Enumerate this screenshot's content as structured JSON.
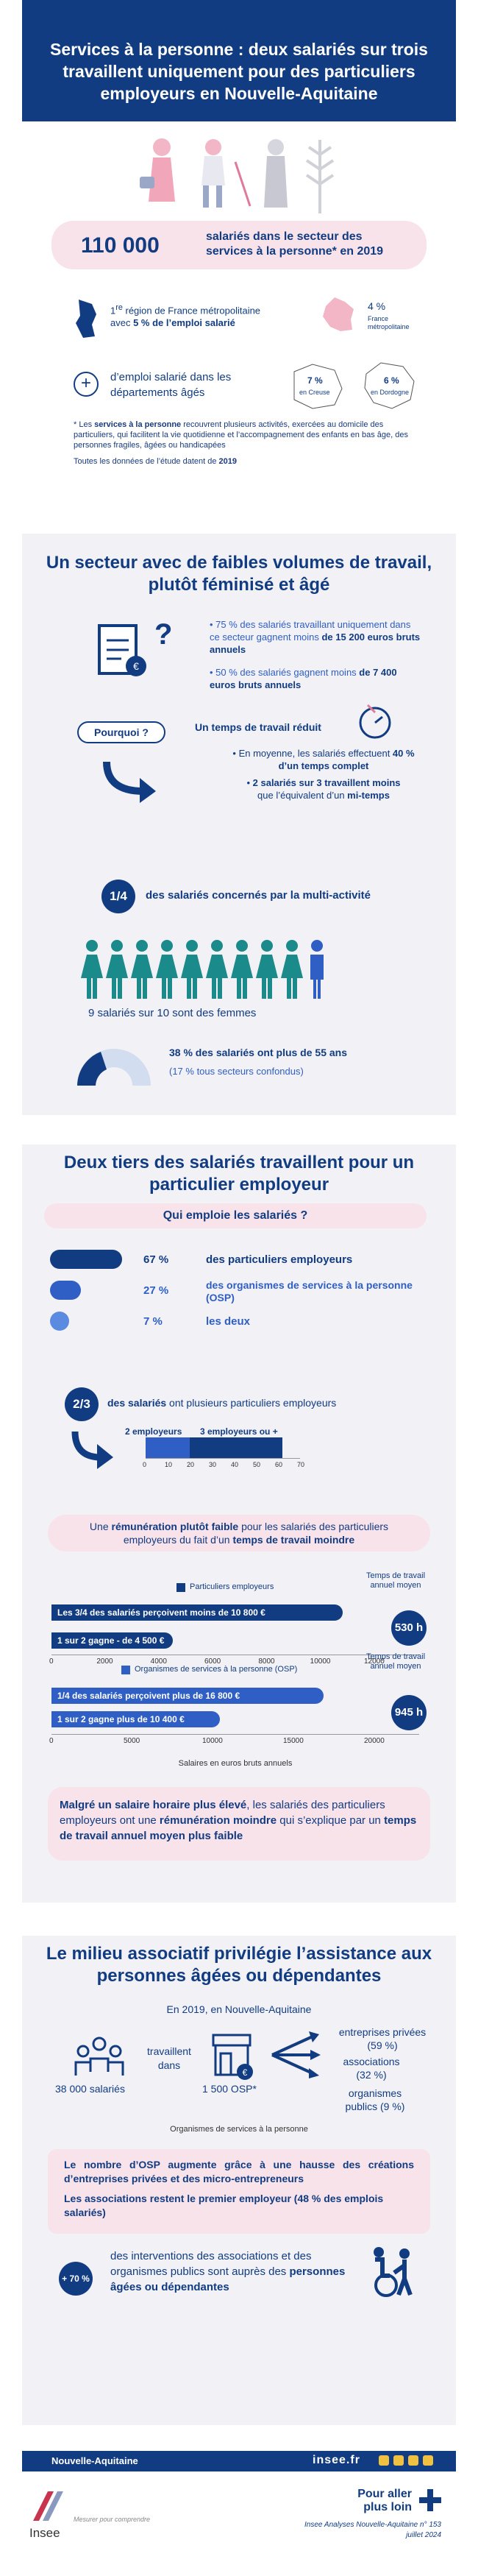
{
  "header": {
    "title": "Services à la personne : deux salariés sur trois travaillent uniquement pour des particuliers employeurs en Nouvelle-Aquitaine"
  },
  "intro": {
    "big_number": "110 000",
    "big_text": "salariés dans le secteur des services à la personne* en 2019",
    "region_rank_sup": "re",
    "region_rank": "1",
    "region_text_1": " région de France métropolitaine",
    "region_text_2a": "avec ",
    "region_text_2b": "5 % de l’emploi salarié",
    "france_pct": "4 %",
    "france_label": "France métropolitaine",
    "aged_text": "d’emploi salarié dans les départements âgés",
    "creuse_pct": "7 %",
    "creuse_label": "en Creuse",
    "dordogne_pct": "6 %",
    "dordogne_label": "en Dordogne",
    "note_star": "* Les ",
    "note_bold": "services à la personne",
    "note_rest": " recouvrent plusieurs activités, exercées au domicile des particuliers, qui facilitent la vie quotidienne et l’accompagnement des enfants en bas âge, des personnes fragiles, âgées ou handicapées",
    "note_data": "Toutes les données de l’étude datent de ",
    "note_year": "2019"
  },
  "sec1": {
    "title": "Un secteur avec de faibles volumes de travail, plutôt féminisé et âgé",
    "stat1a": "75 % des salariés travaillant uniquement dans ce secteur gagnent moins ",
    "stat1b": "de 15 200 euros bruts annuels",
    "stat2a": "50 % des salariés gagnent moins ",
    "stat2b": "de 7 400 euros bruts annuels",
    "pourquoi": "Pourquoi ?",
    "reduced": "Un temps de travail réduit",
    "avg_a": "En moyenne,  les salariés effectuent ",
    "avg_b": "40 % d’un temps complet",
    "two_a": "2 salariés sur 3 travaillent moins",
    "two_b": "que l’équivalent d’un ",
    "two_c": "mi-temps",
    "quarter": "1/4",
    "multi": "des salariés concernés par la multi-activité",
    "women": "9 salariés sur 10 sont des femmes",
    "age_a": "38 % des salariés ont plus de 55 ans",
    "age_b": "(17 % tous secteurs confondus)"
  },
  "sec2": {
    "title": "Deux tiers des salariés travaillent pour un  particulier employeur",
    "who": "Qui emploie les salariés ?",
    "row1_pct": "67 %",
    "row1_label": "des particuliers employeurs",
    "row2_pct": "27 %",
    "row2_label": "des organismes de services à la personne (OSP)",
    "row3_pct": "7 %",
    "row3_label": "les deux",
    "twothirds": "2/3",
    "several_a": "des salariés",
    "several_b": " ont plusieurs particuliers employeurs",
    "emp2": "2 employeurs",
    "emp3": "3 employeurs ou +",
    "pink_a": "Une ",
    "pink_b": "rémunération plutôt faible",
    "pink_c": " pour les salariés des particuliers employeurs du fait d’un ",
    "pink_d": "temps de travail moindre",
    "legend_pe": "Particuliers employeurs",
    "legend_osp": "Organismes de services à la personne (OSP)",
    "annual_time": "Temps de travail annuel moyen",
    "pe_bar1": "Les 3/4 des salariés perçoivent moins de 10 800 €",
    "pe_bar2": "1 sur 2 gagne - de 4 500 €",
    "pe_hours": "530 h",
    "osp_bar1": "1/4 des salariés perçoivent plus de 16 800 €",
    "osp_bar2": "1 sur 2 gagne plus de 10 400 €",
    "osp_hours": "945 h",
    "xlabel": "Salaires en euros bruts annuels",
    "pink2_a": "Malgré un salaire horaire plus élevé",
    "pink2_b": ", les salariés des particuliers employeurs ont une ",
    "pink2_c": "rémunération moindre",
    "pink2_d": " qui s’explique par un ",
    "pink2_e": "temps de travail annuel moyen plus faible"
  },
  "chart_data": [
    {
      "type": "bar",
      "title": "",
      "series": [
        {
          "name": "2 employeurs",
          "values": [
            20
          ]
        },
        {
          "name": "3 employeurs ou +",
          "values": [
            42
          ]
        }
      ],
      "x_ticks": [
        "0",
        "10",
        "20",
        "30",
        "40",
        "50",
        "60",
        "70"
      ],
      "xlim": [
        0,
        70
      ]
    },
    {
      "type": "bar",
      "title": "Particuliers employeurs",
      "categories": [
        "Les 3/4 des salariés perçoivent moins de 10 800 €",
        "1 sur 2 gagne - de 4 500 €"
      ],
      "values": [
        10800,
        4500
      ],
      "x_ticks": [
        "0",
        "2000",
        "4000",
        "6000",
        "8000",
        "10000",
        "12000"
      ],
      "xlim": [
        0,
        12000
      ],
      "xlabel": "Salaires en euros bruts annuels"
    },
    {
      "type": "bar",
      "title": "Organismes de services à la personne (OSP)",
      "categories": [
        "1/4 des salariés perçoivent plus de 16 800 €",
        "1 sur 2 gagne plus de 10 400 €"
      ],
      "values": [
        16800,
        10400
      ],
      "x_ticks": [
        "0",
        "5000",
        "10000",
        "15000",
        "20000"
      ],
      "xlim": [
        0,
        20000
      ],
      "xlabel": "Salaires en euros bruts annuels"
    }
  ],
  "sec3": {
    "title": "Le milieu associatif privilégie l’assistance aux personnes âgées ou dépendantes",
    "subtitle": "En 2019, en Nouvelle-Aquitaine",
    "employees": "38 000 salariés",
    "working": "travaillent dans",
    "osp": "1 500 OSP*",
    "ent": "entreprises privées (59 %)",
    "assoc": "associations (32 %)",
    "pub": "organismes publics (9 %)",
    "footnote": "Organismes de services à la personne",
    "box_a": "Le nombre d’OSP augmente grâce à une hausse des créations d’entreprises privées et des micro-entrepreneurs",
    "box_b": "Les associations restent le premier employeur (48 % des emplois salariés)",
    "plus70": "+ 70 %",
    "interv_a": "des interventions des associations et des organismes publics sont auprès des ",
    "interv_b": "personnes âgées ou dépendantes"
  },
  "footer": {
    "region": "Nouvelle-Aquitaine",
    "site": "insee.fr",
    "logo": "Insee",
    "tagline": "Mesurer pour comprendre",
    "more": "Pour aller plus loin",
    "ref": "Insee Analyses Nouvelle-Aquitaine n° 153",
    "date": "juillet 2024"
  },
  "colors": {
    "navy": "#123c82",
    "blue": "#2f5fc4",
    "pink": "#f8e3ea",
    "teal": "#1a8a8a"
  }
}
